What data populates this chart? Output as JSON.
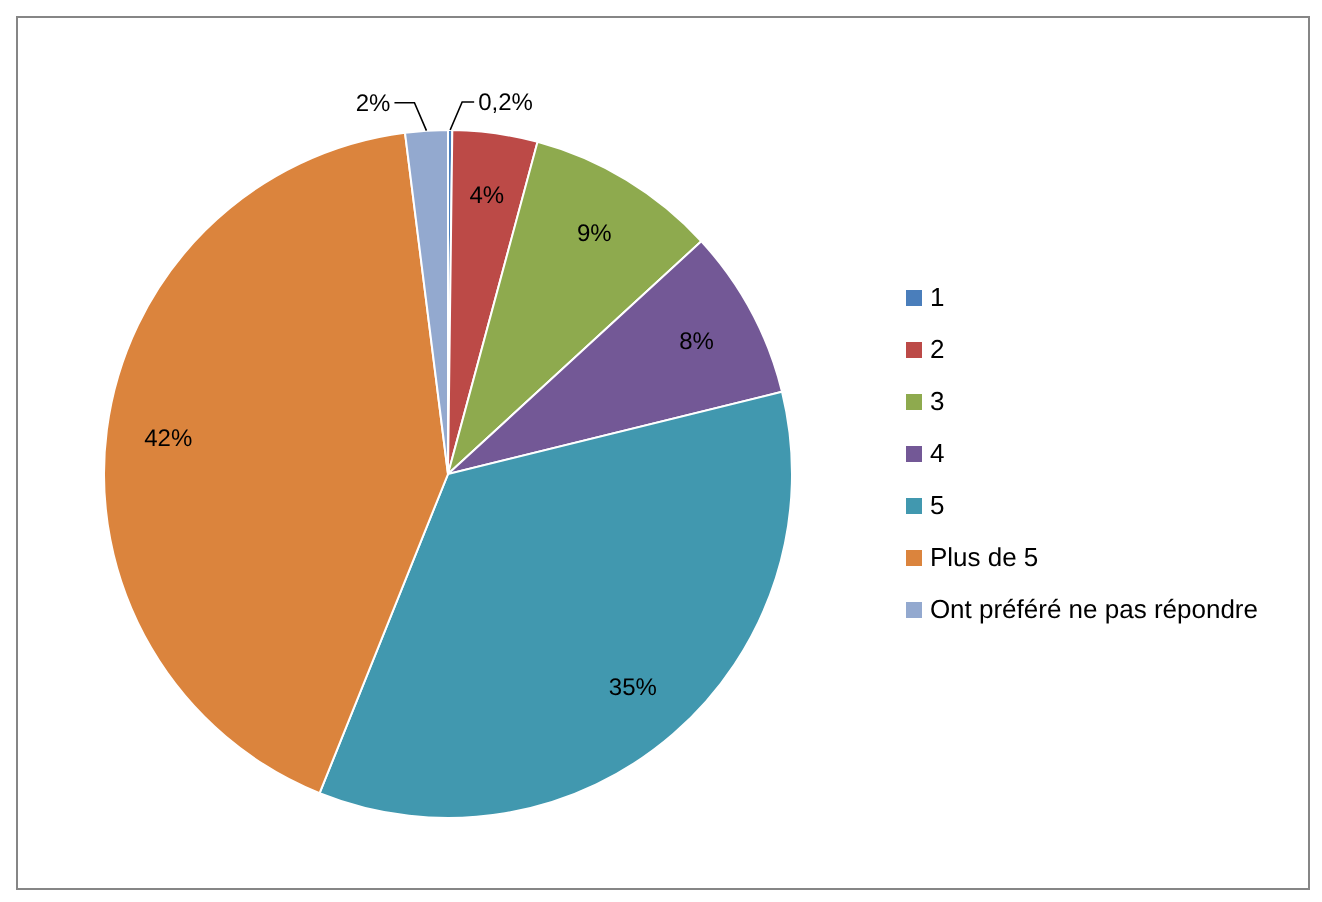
{
  "chart_data": {
    "type": "pie",
    "categories": [
      "1",
      "2",
      "3",
      "4",
      "5",
      "Plus de 5",
      "Ont préféré ne pas répondre"
    ],
    "values": [
      0.2,
      4,
      9,
      8,
      35,
      42,
      2
    ],
    "colors": [
      "#4a7ebb",
      "#bc4a47",
      "#8eaa4e",
      "#735896",
      "#4198af",
      "#db843d",
      "#93a9cf"
    ],
    "value_labels": [
      "0,2%",
      "4%",
      "9%",
      "8%",
      "35%",
      "42%",
      "2%"
    ],
    "legend": "right"
  }
}
